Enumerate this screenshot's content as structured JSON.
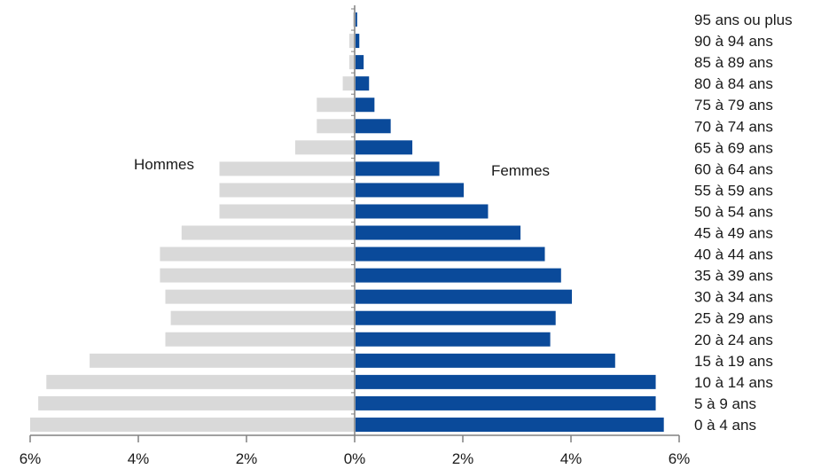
{
  "chart_data": {
    "type": "bar",
    "orientation": "horizontal",
    "layout": "population-pyramid",
    "title": "",
    "xlabel": "",
    "ylabel": "",
    "xlim": [
      -6,
      6
    ],
    "x_ticks": [
      "6%",
      "4%",
      "2%",
      "0%",
      "2%",
      "4%",
      "6%"
    ],
    "categories": [
      "0 à 4 ans",
      "5 à 9 ans",
      "10 à 14 ans",
      "15 à 19 ans",
      "20 à 24 ans",
      "25 à 29 ans",
      "30 à 34 ans",
      "35 à 39 ans",
      "40 à 44 ans",
      "45 à 49 ans",
      "50 à 54 ans",
      "55 à 59 ans",
      "60 à 64 ans",
      "65 à 69 ans",
      "70 à 74 ans",
      "75 à 79 ans",
      "80 à 84 ans",
      "85 à 89 ans",
      "90 à 94 ans",
      "95 ans ou plus"
    ],
    "series": [
      {
        "name": "Hommes",
        "side": "left",
        "color": "#d9d9d9",
        "values": [
          6.0,
          5.85,
          5.7,
          4.9,
          3.5,
          3.4,
          3.5,
          3.6,
          3.6,
          3.2,
          2.5,
          2.5,
          2.5,
          1.1,
          0.7,
          0.7,
          0.22,
          0.1,
          0.1,
          0.03
        ]
      },
      {
        "name": "Femmes",
        "side": "right",
        "color": "#0a4a9a",
        "values": [
          5.7,
          5.55,
          5.55,
          4.8,
          3.6,
          3.7,
          4.0,
          3.8,
          3.5,
          3.05,
          2.45,
          2.0,
          1.55,
          1.05,
          0.65,
          0.35,
          0.25,
          0.15,
          0.07,
          0.03
        ]
      }
    ],
    "grid": false,
    "legend": "inline labels"
  }
}
